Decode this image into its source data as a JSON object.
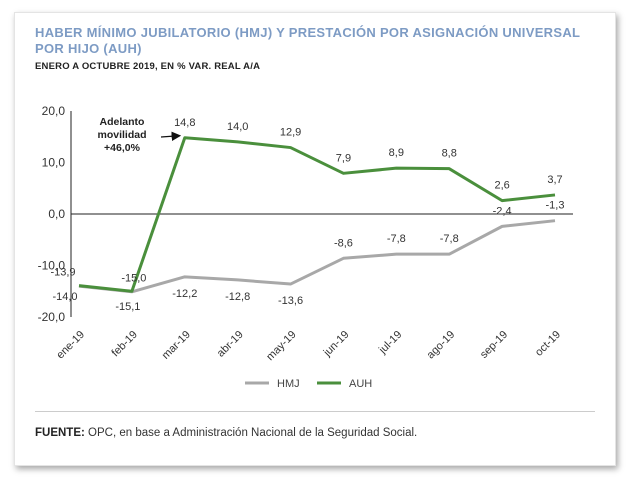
{
  "title": "HABER MÍNIMO JUBILATORIO (HMJ) Y PRESTACIÓN POR ASIGNACIÓN UNIVERSAL POR HIJO (AUH)",
  "subtitle": "ENERO A OCTUBRE 2019, EN % VAR. REAL A/A",
  "source": {
    "label": "FUENTE:",
    "text": " OPC, en base a Administración Nacional de la Seguridad Social."
  },
  "colors": {
    "hmj": "#a8a8a8",
    "auh": "#4a8f3c"
  },
  "chart_data": {
    "type": "line",
    "categories": [
      "ene-19",
      "feb-19",
      "mar-19",
      "abr-19",
      "may-19",
      "jun-19",
      "jul-19",
      "ago-19",
      "sep-19",
      "oct-19"
    ],
    "ylim": [
      -20,
      20
    ],
    "yticks": [
      "20,0",
      "10,0",
      "0,0",
      "-10,0",
      "-20,0"
    ],
    "ytick_values": [
      20,
      10,
      0,
      -10,
      -20
    ],
    "series": [
      {
        "name": "HMJ",
        "values": [
          -14.0,
          -15.1,
          -12.2,
          -12.8,
          -13.6,
          -8.6,
          -7.8,
          -7.8,
          -2.4,
          -1.3
        ],
        "labels": [
          "-14,0",
          "-15,1",
          "-12,2",
          "-12,8",
          "-13,6",
          "-8,6",
          "-7,8",
          "-7,8",
          "-2,4",
          "-1,3"
        ]
      },
      {
        "name": "AUH",
        "values": [
          -13.9,
          -15.0,
          14.8,
          14.0,
          12.9,
          7.9,
          8.9,
          8.8,
          2.6,
          3.7
        ],
        "labels": [
          "-13,9",
          "-15,0",
          "14,8",
          "14,0",
          "12,9",
          "7,9",
          "8,9",
          "8,8",
          "2,6",
          "3,7"
        ]
      }
    ],
    "annotation": {
      "lines": [
        "Adelanto",
        "movilidad",
        "+46,0%"
      ]
    },
    "legend_position": "bottom-center"
  }
}
